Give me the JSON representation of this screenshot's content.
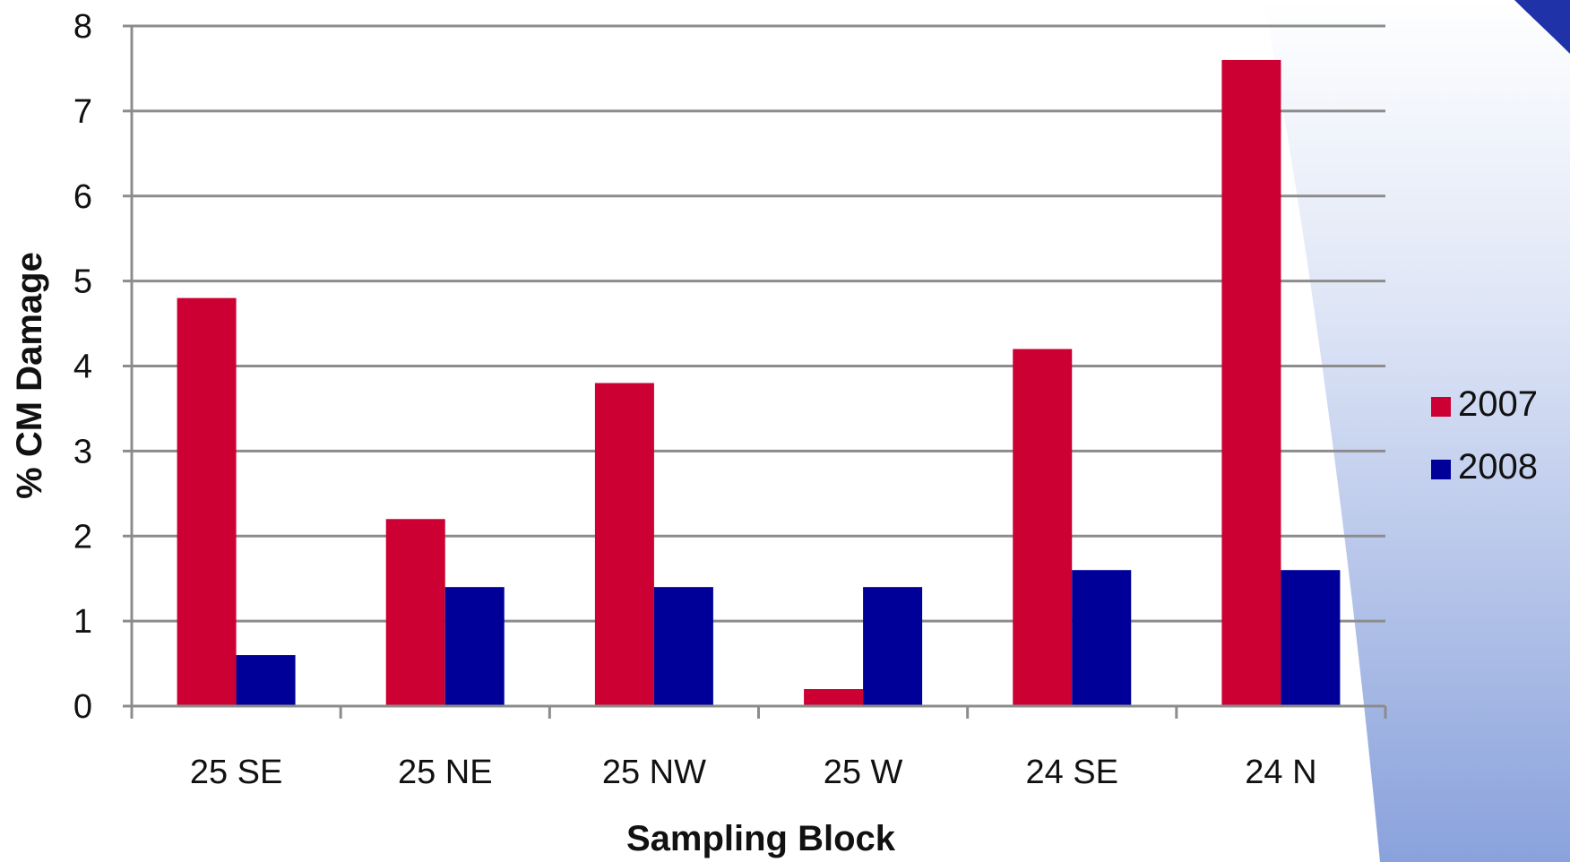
{
  "chart_data": {
    "type": "bar",
    "title": "",
    "xlabel": "Sampling Block",
    "ylabel": "% CM Damage",
    "categories": [
      "25 SE",
      "25 NE",
      "25 NW",
      "25 W",
      "24 SE",
      "24 N"
    ],
    "series": [
      {
        "name": "2007",
        "color": "#cc0033",
        "values": [
          4.8,
          2.2,
          3.8,
          0.2,
          4.2,
          7.6
        ]
      },
      {
        "name": "2008",
        "color": "#000099",
        "values": [
          0.6,
          1.4,
          1.4,
          1.4,
          1.6,
          1.6
        ]
      }
    ],
    "ylim": [
      0,
      8
    ],
    "yticks": [
      "0",
      "1",
      "2",
      "3",
      "4",
      "5",
      "6",
      "7",
      "8"
    ],
    "grid": true,
    "legend_position": "right"
  }
}
